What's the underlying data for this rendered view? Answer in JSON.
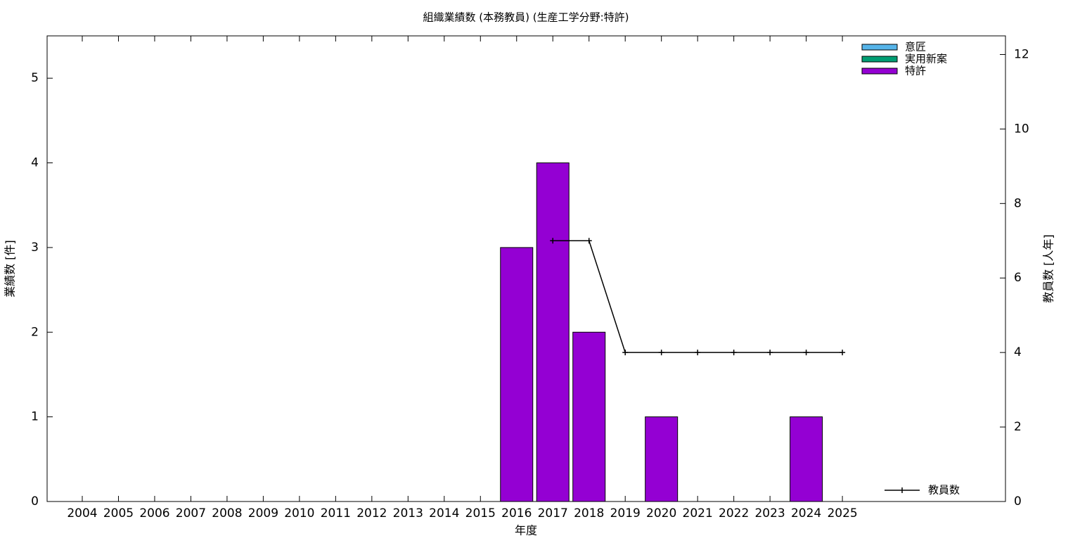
{
  "chart_data": {
    "type": "bar",
    "stacked": true,
    "title": "組織業績数 (本務教員) (生産工学分野:特許)",
    "x_label": "年度",
    "y_label": "業績数 [件]",
    "y2_label": "教員数 [人年]",
    "categories": [
      "2004",
      "2005",
      "2006",
      "2007",
      "2008",
      "2009",
      "2010",
      "2011",
      "2012",
      "2013",
      "2014",
      "2015",
      "2016",
      "2017",
      "2018",
      "2019",
      "2020",
      "2021",
      "2022",
      "2023",
      "2024",
      "2025"
    ],
    "series": [
      {
        "name": "意匠",
        "color": "#56b4e9",
        "values": [
          0,
          0,
          0,
          0,
          0,
          0,
          0,
          0,
          0,
          0,
          0,
          0,
          0,
          0,
          0,
          0,
          0,
          0,
          0,
          0,
          0,
          0
        ]
      },
      {
        "name": "実用新案",
        "color": "#009e73",
        "values": [
          0,
          0,
          0,
          0,
          0,
          0,
          0,
          0,
          0,
          0,
          0,
          0,
          0,
          0,
          0,
          0,
          0,
          0,
          0,
          0,
          0,
          0
        ]
      },
      {
        "name": "特許",
        "color": "#9400d3",
        "values": [
          0,
          0,
          0,
          0,
          0,
          0,
          0,
          0,
          0,
          0,
          0,
          0,
          3,
          4,
          2,
          0,
          1,
          0,
          0,
          0,
          1,
          0
        ]
      },
      {
        "name": "教員数",
        "type": "line",
        "axis": "y2",
        "color": "#000000",
        "values": [
          null,
          null,
          null,
          null,
          null,
          null,
          null,
          null,
          null,
          null,
          null,
          null,
          null,
          7,
          7,
          4,
          4,
          4,
          4,
          4,
          4,
          4
        ]
      }
    ],
    "ylim": [
      0,
      5.5
    ],
    "yticks": [
      0,
      1,
      2,
      3,
      4,
      5
    ],
    "y2lim": [
      0,
      12.5
    ],
    "y2ticks": [
      0,
      2,
      4,
      6,
      8,
      10,
      12
    ]
  }
}
